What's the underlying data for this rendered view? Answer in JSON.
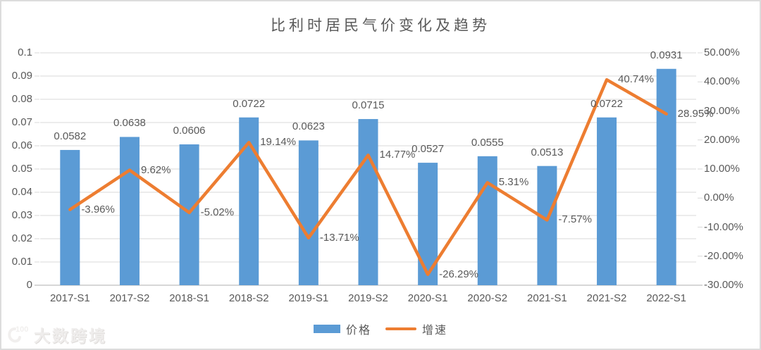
{
  "watermark": {
    "brand": "大数跨境",
    "logo_text": "100"
  },
  "legend": {
    "position": "bottom",
    "items": [
      {
        "label": "价格",
        "type": "bar"
      },
      {
        "label": "增速",
        "type": "line"
      }
    ]
  },
  "colors": {
    "bar": "#5B9BD5",
    "line": "#ED7D31",
    "grid": "#D9D9D9",
    "axis_line": "#BFBFBF",
    "text": "#595959"
  },
  "chart_data": {
    "type": "combo",
    "title": "比利时居民气价变化及趋势",
    "xlabel": "",
    "ylabel": "",
    "grid": true,
    "legend_position": "bottom",
    "categories": [
      "2017-S1",
      "2017-S2",
      "2018-S1",
      "2018-S2",
      "2019-S1",
      "2019-S2",
      "2020-S1",
      "2020-S2",
      "2021-S1",
      "2021-S2",
      "2022-S1"
    ],
    "series": [
      {
        "name": "价格",
        "type": "bar",
        "axis": "left",
        "values": [
          0.0582,
          0.0638,
          0.0606,
          0.0722,
          0.0623,
          0.0715,
          0.0527,
          0.0555,
          0.0513,
          0.0722,
          0.0931
        ],
        "labels": [
          "0.0582",
          "0.0638",
          "0.0606",
          "0.0722",
          "0.0623",
          "0.0715",
          "0.0527",
          "0.0555",
          "0.0513",
          "0.0722",
          "0.0931"
        ]
      },
      {
        "name": "增速",
        "type": "line",
        "axis": "right",
        "unit": "%",
        "values": [
          -3.96,
          9.62,
          -5.02,
          19.14,
          -13.71,
          14.77,
          -26.29,
          5.31,
          -7.57,
          40.74,
          28.95
        ],
        "labels": [
          "-3.96%",
          "9.62%",
          "-5.02%",
          "19.14%",
          "-13.71%",
          "14.77%",
          "-26.29%",
          "5.31%",
          "-7.57%",
          "40.74%",
          "28.95%"
        ]
      }
    ],
    "left_axis": {
      "min": 0,
      "max": 0.1,
      "step": 0.01,
      "tick_labels": [
        "0.1",
        "0.09",
        "0.08",
        "0.07",
        "0.06",
        "0.05",
        "0.04",
        "0.03",
        "0.02",
        "0.01",
        "0"
      ]
    },
    "right_axis": {
      "min": -30,
      "max": 50,
      "step": 10,
      "tick_labels": [
        "50.00%",
        "40.00%",
        "30.00%",
        "20.00%",
        "10.00%",
        "0.00%",
        "-10.00%",
        "-20.00%",
        "-30.00%"
      ]
    }
  }
}
